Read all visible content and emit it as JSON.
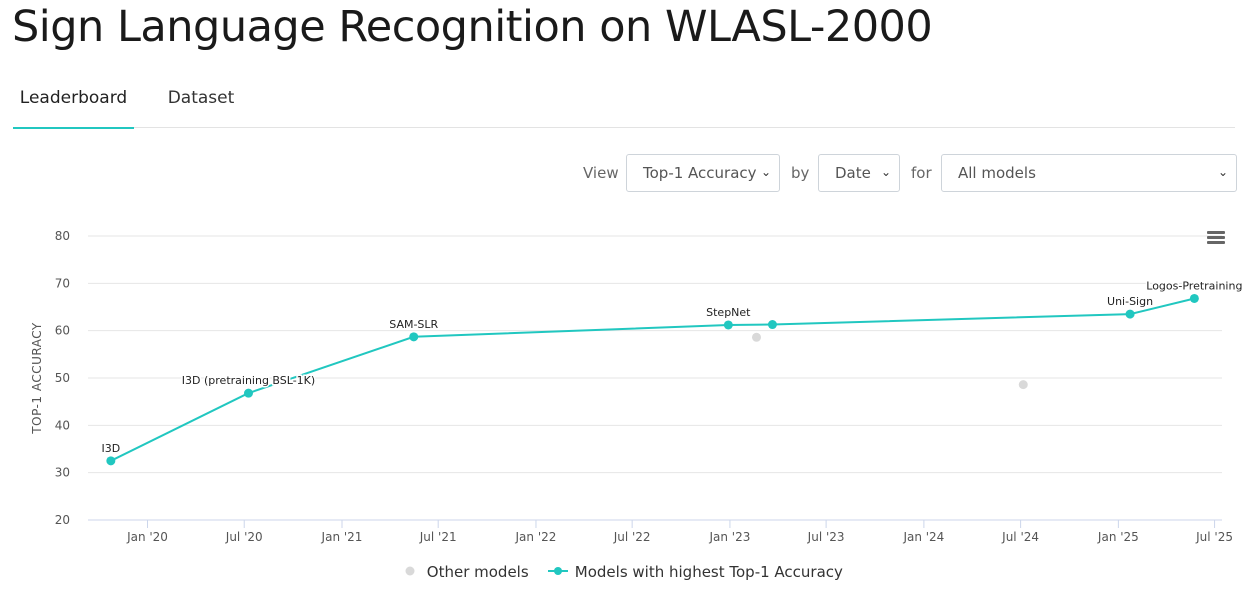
{
  "page": {
    "title": "Sign Language Recognition on WLASL-2000"
  },
  "tabs": [
    {
      "label": "Leaderboard",
      "active": true
    },
    {
      "label": "Dataset",
      "active": false
    }
  ],
  "controls": {
    "view_label": "View",
    "view_value": "Top-1 Accuracy",
    "by_label": "by",
    "by_value": "Date",
    "for_label": "for",
    "for_value": "All models"
  },
  "colors": {
    "accent": "#21c7c0",
    "other": "#d9d9d9",
    "grid": "#e6e6e6",
    "axis_text": "#555555"
  },
  "chart_data": {
    "type": "line",
    "title": "",
    "xlabel": "",
    "ylabel": "TOP-1 ACCURACY",
    "ylim": [
      20,
      80
    ],
    "yticks": [
      20,
      30,
      40,
      50,
      60,
      70,
      80
    ],
    "xlim": [
      "2019-09-11",
      "2025-07-15"
    ],
    "xticks": [
      {
        "label": "Jan '20",
        "date": "2020-01-01"
      },
      {
        "label": "Jul '20",
        "date": "2020-07-01"
      },
      {
        "label": "Jan '21",
        "date": "2021-01-01"
      },
      {
        "label": "Jul '21",
        "date": "2021-07-01"
      },
      {
        "label": "Jan '22",
        "date": "2022-01-01"
      },
      {
        "label": "Jul '22",
        "date": "2022-07-01"
      },
      {
        "label": "Jan '23",
        "date": "2023-01-01"
      },
      {
        "label": "Jul '23",
        "date": "2023-07-01"
      },
      {
        "label": "Jan '24",
        "date": "2024-01-01"
      },
      {
        "label": "Jul '24",
        "date": "2024-07-01"
      },
      {
        "label": "Jan '25",
        "date": "2025-01-01"
      },
      {
        "label": "Jul '25",
        "date": "2025-07-01"
      }
    ],
    "series": [
      {
        "name": "Models with highest Top-1 Accuracy",
        "color": "#21c7c0",
        "points": [
          {
            "date": "2019-10-24",
            "value": 32.5,
            "label": "I3D"
          },
          {
            "date": "2020-07-09",
            "value": 46.8,
            "label": "I3D (pretraining BSL-1K)"
          },
          {
            "date": "2021-05-16",
            "value": 58.7,
            "label": "SAM-SLR"
          },
          {
            "date": "2022-12-29",
            "value": 61.2,
            "label": "StepNet"
          },
          {
            "date": "2023-03-22",
            "value": 61.3,
            "label": ""
          },
          {
            "date": "2025-01-23",
            "value": 63.5,
            "label": "Uni-Sign"
          },
          {
            "date": "2025-05-24",
            "value": 66.8,
            "label": "Logos-Pretraining"
          }
        ]
      },
      {
        "name": "Other models",
        "color": "#d9d9d9",
        "points": [
          {
            "date": "2023-02-20",
            "value": 58.6,
            "label": ""
          },
          {
            "date": "2024-07-06",
            "value": 48.6,
            "label": ""
          }
        ]
      }
    ],
    "legend": {
      "position": "bottom-center",
      "items": [
        "Other models",
        "Models with highest Top-1 Accuracy"
      ]
    }
  }
}
